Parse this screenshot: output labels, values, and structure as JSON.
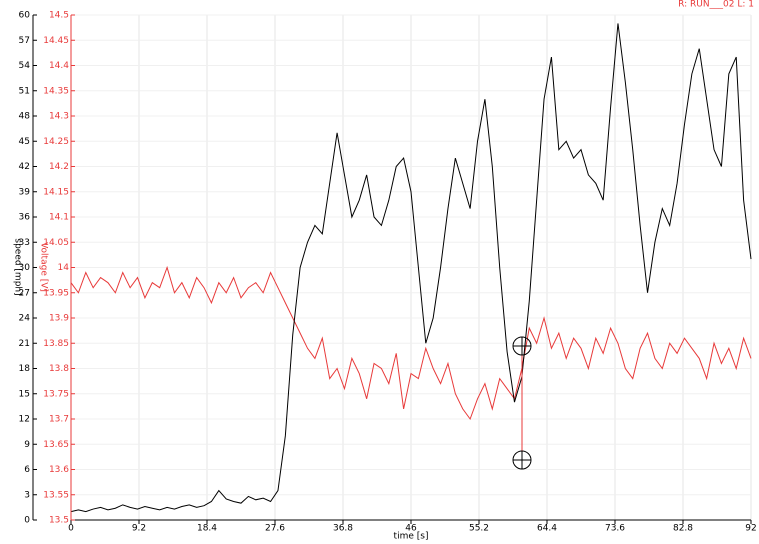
{
  "chart_data": {
    "type": "line",
    "header": "R: RUN___02  L: 1",
    "xlabel": "time [s]",
    "ylabel": "speed [mph]",
    "y2label": "Voltage [V]",
    "x": [
      0,
      1,
      2,
      3,
      4,
      5,
      6,
      7,
      8,
      9,
      10,
      11,
      12,
      13,
      14,
      15,
      16,
      17,
      18,
      19,
      20,
      21,
      22,
      23,
      24,
      25,
      26,
      27,
      28,
      29,
      30,
      31,
      32,
      33,
      34,
      35,
      36,
      37,
      38,
      39,
      40,
      41,
      42,
      43,
      44,
      45,
      46,
      47,
      48,
      49,
      50,
      51,
      52,
      53,
      54,
      55,
      56,
      57,
      58,
      59,
      60,
      61,
      62,
      63,
      64,
      65,
      66,
      67,
      68,
      69,
      70,
      71,
      72,
      73,
      74,
      75,
      76,
      77,
      78,
      79,
      80,
      81,
      82,
      83,
      84,
      85,
      86,
      87,
      88,
      89,
      90,
      91,
      92
    ],
    "series": [
      {
        "name": "speed",
        "color": "#000000",
        "values": [
          1,
          1.2,
          1,
          1.3,
          1.5,
          1.2,
          1.4,
          1.8,
          1.5,
          1.3,
          1.6,
          1.4,
          1.2,
          1.5,
          1.3,
          1.6,
          1.8,
          1.5,
          1.7,
          2.2,
          3.5,
          2.5,
          2.2,
          2,
          2.8,
          2.4,
          2.6,
          2.2,
          3.5,
          10,
          22,
          30,
          33,
          35,
          34,
          40,
          46,
          41,
          36,
          38,
          41,
          36,
          35,
          38,
          42,
          43,
          39,
          30,
          21,
          24,
          30,
          37,
          43,
          40,
          37,
          45,
          50,
          42,
          30,
          20,
          14,
          17,
          26,
          38,
          50,
          55,
          44,
          45,
          43,
          44,
          41,
          40,
          38,
          49,
          59,
          52,
          44,
          35,
          27,
          33,
          37,
          35,
          40,
          47,
          53,
          56,
          50,
          44,
          42,
          53,
          55,
          38,
          31
        ]
      },
      {
        "name": "Voltage",
        "color": "#e83a3a",
        "axis": "y2",
        "values": [
          13.97,
          13.95,
          13.99,
          13.96,
          13.98,
          13.97,
          13.95,
          13.99,
          13.96,
          13.98,
          13.94,
          13.97,
          13.96,
          14.0,
          13.95,
          13.97,
          13.94,
          13.98,
          13.96,
          13.93,
          13.97,
          13.95,
          13.98,
          13.94,
          13.96,
          13.97,
          13.95,
          13.99,
          13.96,
          13.93,
          13.9,
          13.87,
          13.84,
          13.82,
          13.86,
          13.78,
          13.8,
          13.76,
          13.82,
          13.79,
          13.74,
          13.81,
          13.8,
          13.77,
          13.83,
          13.72,
          13.79,
          13.78,
          13.84,
          13.8,
          13.77,
          13.81,
          13.75,
          13.72,
          13.7,
          13.74,
          13.77,
          13.72,
          13.78,
          13.76,
          13.74,
          13.8,
          13.88,
          13.85,
          13.9,
          13.84,
          13.87,
          13.82,
          13.86,
          13.84,
          13.8,
          13.86,
          13.83,
          13.88,
          13.85,
          13.8,
          13.78,
          13.84,
          13.87,
          13.82,
          13.8,
          13.85,
          13.83,
          13.86,
          13.84,
          13.82,
          13.78,
          13.85,
          13.81,
          13.84,
          13.8,
          13.86,
          13.82
        ]
      }
    ],
    "xlim": [
      0,
      92
    ],
    "xticks": [
      0,
      9.2,
      18.4,
      27.6,
      36.8,
      46,
      55.2,
      64.4,
      73.6,
      82.8,
      92
    ],
    "ylim": [
      0,
      60
    ],
    "yticks": [
      0,
      3,
      6,
      9,
      12,
      15,
      18,
      21,
      24,
      27,
      30,
      33,
      36,
      39,
      42,
      45,
      48,
      51,
      54,
      57,
      60
    ],
    "y2lim": [
      13.5,
      14.5
    ],
    "y2ticks": [
      13.5,
      13.55,
      13.6,
      13.65,
      13.7,
      13.75,
      13.8,
      13.85,
      13.9,
      13.95,
      14,
      14.05,
      14.1,
      14.15,
      14.2,
      14.25,
      14.3,
      14.35,
      14.4,
      14.45,
      14.5
    ],
    "grid": true
  }
}
